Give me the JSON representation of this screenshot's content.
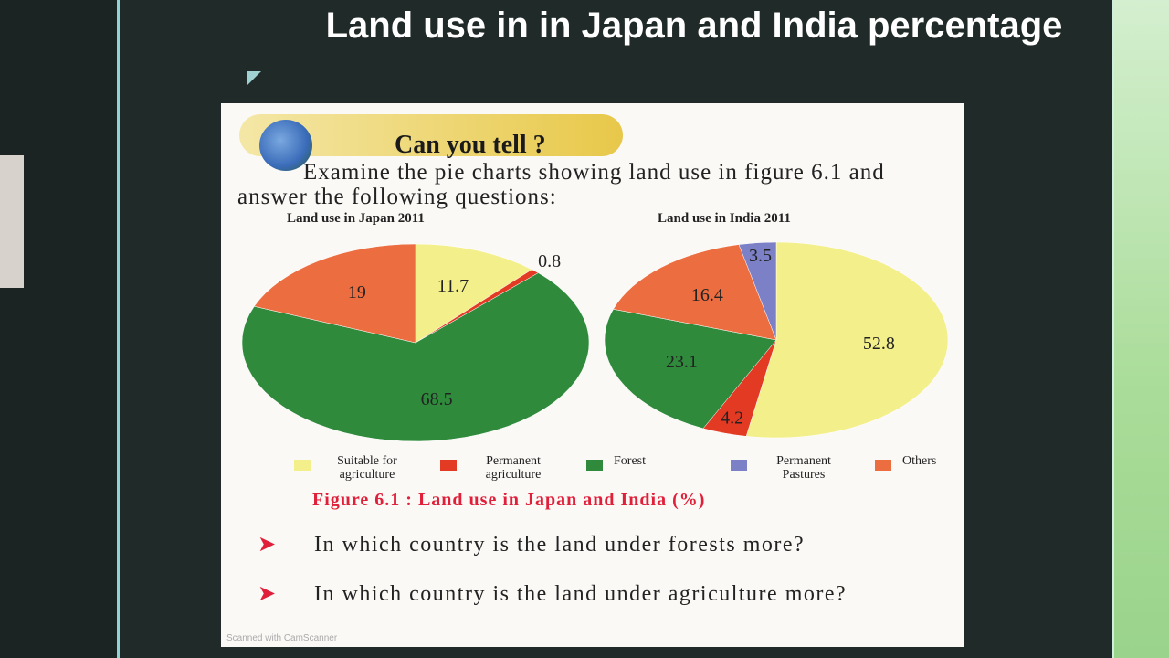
{
  "slide_title": "Land use in in Japan and India percentage",
  "banner": "Can you tell ?",
  "instruction": "Examine the pie charts showing land use in figure 6.1 and answer the following questions:",
  "legend": {
    "categories": [
      "Suitable for agriculture",
      "Permanent agriculture",
      "Forest",
      "Permanent Pastures",
      "Others"
    ],
    "colors": [
      "#f3ef8a",
      "#e33a24",
      "#2f8a3c",
      "#7c80c6",
      "#ec6d3f"
    ]
  },
  "chart_data": [
    {
      "type": "pie",
      "title": "Land use in Japan 2011",
      "values": [
        11.7,
        0.8,
        68.5,
        null,
        19
      ]
    },
    {
      "type": "pie",
      "title": "Land use in India 2011",
      "values": [
        52.8,
        4.2,
        23.1,
        3.5,
        16.4
      ]
    }
  ],
  "caption": "Figure 6.1 : Land use in Japan and India (%)",
  "questions": [
    "In which country is the land under forests more?",
    "In which country is the land under agriculture more?"
  ],
  "watermark": "Scanned with CamScanner"
}
